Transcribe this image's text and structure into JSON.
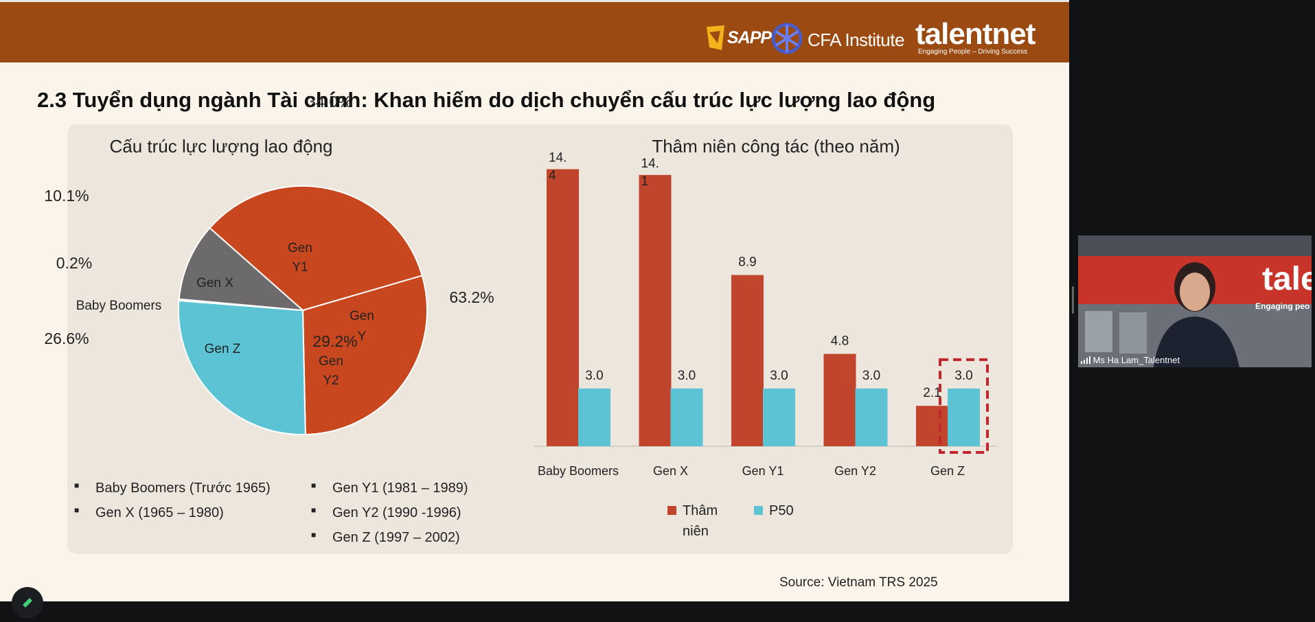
{
  "header": {
    "logos": {
      "sapp": "SAPP",
      "cfa": "CFA Institute",
      "talentnet": "talentnet",
      "talentnet_tagline": "Engaging People – Driving Success"
    },
    "colors": {
      "bar": "#9b4a12",
      "text": "#ffffff"
    }
  },
  "slide": {
    "title": "2.3 Tuyển dụng ngành Tài chính: Khan hiếm do dịch chuyển cấu trúc lực lượng lao động",
    "source": "Source: Vietnam TRS 2025"
  },
  "chart_data": [
    {
      "type": "pie",
      "title": "Cấu trúc lực lượng lao động",
      "slices": [
        {
          "name": "Gen Y1",
          "inner_label": [
            "Gen",
            "Y1"
          ],
          "value": 34.0,
          "label": "34.0%",
          "color": "#c9471f"
        },
        {
          "name": "Gen Y2",
          "inner_label": [
            "Gen",
            "Y2"
          ],
          "value": 29.2,
          "label": "29.2%",
          "color": "#c9471f"
        },
        {
          "name": "Gen Z",
          "inner_label": [
            "Gen Z"
          ],
          "value": 26.6,
          "label": "26.6%",
          "color": "#5bc3d4"
        },
        {
          "name": "Baby Boomers",
          "inner_label": [],
          "value": 0.2,
          "label": "0.2%",
          "color": "#a0a0a0"
        },
        {
          "name": "Gen X",
          "inner_label": [
            "Gen X"
          ],
          "value": 10.1,
          "label": "10.1%",
          "color": "#6d6a6b"
        }
      ],
      "group_label": {
        "name": [
          "Gen",
          "Y"
        ],
        "label": "63.2%"
      },
      "outside_name": "Baby Boomers",
      "legend": {
        "left": [
          "Baby Boomers (Trước 1965)",
          "Gen X (1965 – 1980)"
        ],
        "right": [
          "Gen Y1 (1981 – 1989)",
          "Gen  Y2  (1990  -1996)",
          "Gen Z (1997 – 2002)"
        ]
      }
    },
    {
      "type": "bar",
      "title": "Thâm niên công tác (theo năm)",
      "categories": [
        "Baby Boomers",
        "Gen X",
        "Gen Y1",
        "Gen Y2",
        "Gen Z"
      ],
      "series": [
        {
          "name": "Thâm niên",
          "legend_lines": [
            "Thâm",
            "niên"
          ],
          "color": "#c1442c",
          "values": [
            14.4,
            14.1,
            8.9,
            4.8,
            2.1
          ],
          "labels": [
            [
              "14.",
              "4"
            ],
            [
              "14.",
              "1"
            ],
            [
              "8.9"
            ],
            [
              "4.8"
            ],
            [
              "2.1"
            ]
          ]
        },
        {
          "name": "P50",
          "legend_lines": [
            "P50"
          ],
          "color": "#5bc3d4",
          "values": [
            3.0,
            3.0,
            3.0,
            3.0,
            3.0
          ],
          "labels": [
            [
              "3.0"
            ],
            [
              "3.0"
            ],
            [
              "3.0"
            ],
            [
              "3.0"
            ],
            [
              "3.0"
            ]
          ]
        }
      ],
      "ylim": [
        0,
        15.7
      ],
      "highlight": {
        "category": "Gen Z",
        "series": "P50",
        "color": "#c0262c"
      }
    }
  ],
  "video": {
    "participant": "Ms Ha Lam_Talentnet",
    "backdrop_text": "tale",
    "backdrop_tagline": "Engaging peo",
    "signal_icon": "signal-bars-icon"
  }
}
